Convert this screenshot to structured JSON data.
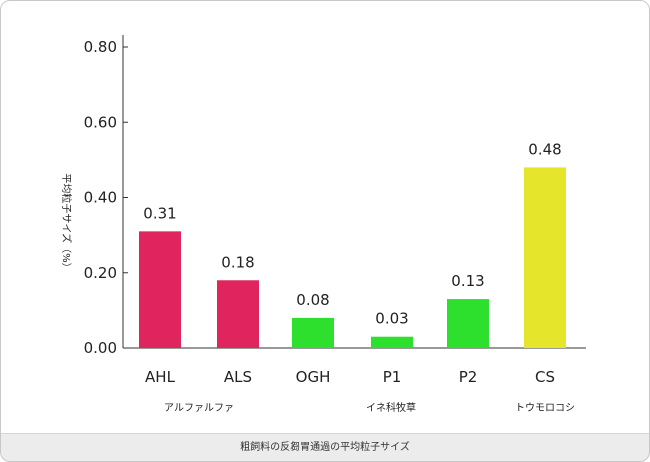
{
  "chart_data": {
    "type": "bar",
    "title": "",
    "xlabel": "",
    "ylabel": "平均粒子サイズ（%）",
    "ylim": [
      0,
      0.8
    ],
    "yticks": [
      "0.00",
      "0.20",
      "0.40",
      "0.60",
      "0.80"
    ],
    "categories": [
      "AHL",
      "ALS",
      "OGH",
      "P1",
      "P2",
      "CS"
    ],
    "values": [
      0.31,
      0.18,
      0.08,
      0.03,
      0.13,
      0.48
    ],
    "value_labels": [
      "0.31",
      "0.18",
      "0.08",
      "0.03",
      "0.13",
      "0.48"
    ],
    "groups": [
      {
        "label": "アルファルファ",
        "categories": [
          "AHL",
          "ALS"
        ]
      },
      {
        "label": "イネ科牧草",
        "categories": [
          "OGH",
          "P1",
          "P2"
        ]
      },
      {
        "label": "トウモロコシ",
        "categories": [
          "CS"
        ]
      }
    ],
    "colors": [
      "#e0245e",
      "#e0245e",
      "#2ee02e",
      "#2ee02e",
      "#2ee02e",
      "#e5e52b"
    ],
    "grid": false,
    "legend": "none"
  },
  "caption": "粗飼料の反芻胃通過の平均粒子サイズ"
}
